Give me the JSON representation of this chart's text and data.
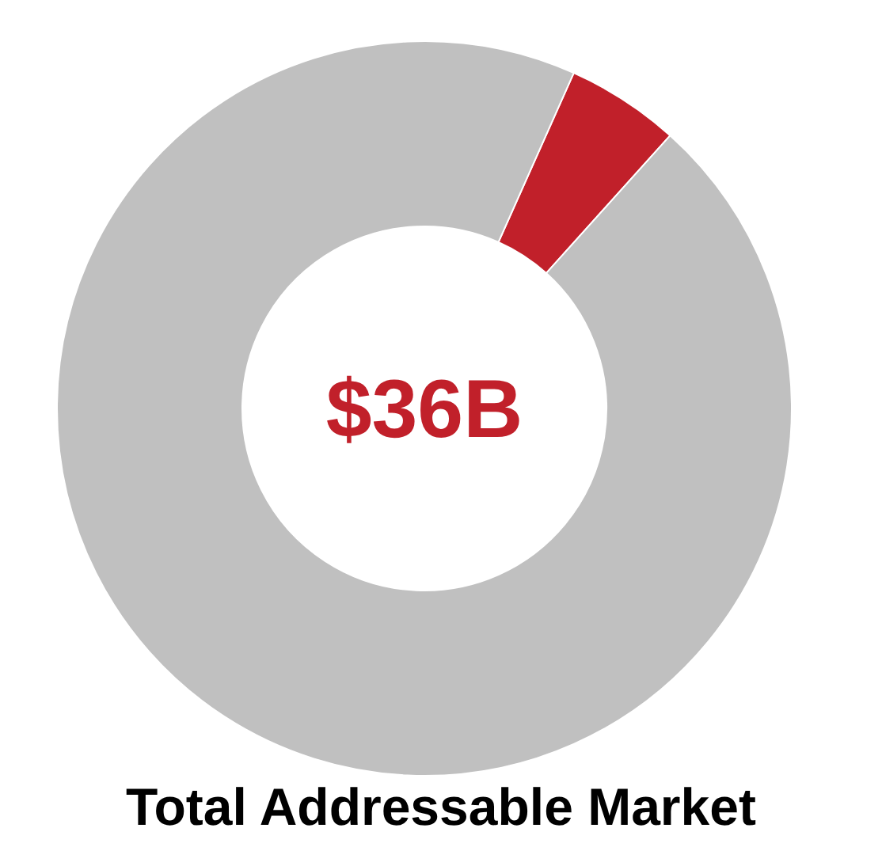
{
  "chart_data": {
    "type": "donut",
    "title": "Total Addressable Market",
    "categories": [
      null,
      null
    ],
    "values": [
      5,
      95
    ],
    "colors": [
      "#c1202a",
      "#c0c0c0"
    ],
    "annotations": [
      "$36B"
    ]
  }
}
